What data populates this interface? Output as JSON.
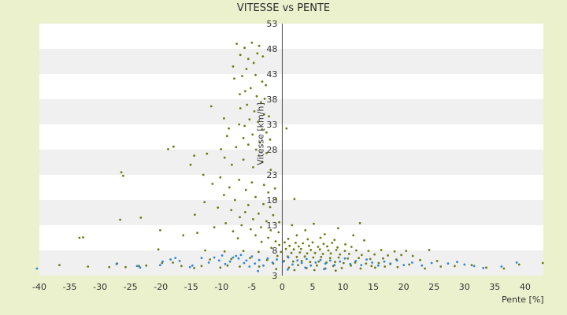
{
  "chart_data": {
    "type": "scatter",
    "title": "VITESSE vs PENTE",
    "xlabel": "Pente [%]",
    "ylabel": "Vitesse [km/h]",
    "xlim": [
      -40,
      43
    ],
    "ylim": [
      3,
      53
    ],
    "x_ticks": [
      "-40",
      "-35",
      "-30",
      "-25",
      "-20",
      "-15",
      "-10",
      "-5",
      "0",
      "5",
      "10",
      "15",
      "20",
      "25",
      "30",
      "35",
      "40"
    ],
    "y_ticks": [
      "3",
      "8",
      "13",
      "18",
      "23",
      "28",
      "33",
      "38",
      "43",
      "48",
      "53"
    ],
    "grid": "horizontal bands",
    "series": [
      {
        "color": "#6b7d12",
        "points": [
          [
            -5.0,
            49.2
          ],
          [
            -7.5,
            49.0
          ],
          [
            -6.2,
            48.2
          ],
          [
            -3.8,
            48.6
          ],
          [
            -4.1,
            47.1
          ],
          [
            -6.9,
            46.8
          ],
          [
            -5.6,
            46.0
          ],
          [
            -4.7,
            45.2
          ],
          [
            -3.2,
            46.5
          ],
          [
            -8.1,
            44.5
          ],
          [
            -5.9,
            44.0
          ],
          [
            -6.6,
            42.6
          ],
          [
            -7.9,
            42.1
          ],
          [
            -4.4,
            42.8
          ],
          [
            -3.3,
            41.5
          ],
          [
            -2.7,
            40.8
          ],
          [
            -5.2,
            40.2
          ],
          [
            -6.1,
            39.6
          ],
          [
            -7.0,
            39.0
          ],
          [
            -4.2,
            38.6
          ],
          [
            -2.9,
            38.1
          ],
          [
            -3.5,
            37.4
          ],
          [
            -5.8,
            36.9
          ],
          [
            -6.9,
            36.2
          ],
          [
            -11.7,
            36.6
          ],
          [
            -4.6,
            35.6
          ],
          [
            -3.0,
            35.0
          ],
          [
            -2.2,
            34.6
          ],
          [
            -9.6,
            34.2
          ],
          [
            -5.4,
            34.0
          ],
          [
            -4.0,
            33.5
          ],
          [
            -7.1,
            33.0
          ],
          [
            -6.2,
            32.7
          ],
          [
            -8.8,
            32.2
          ],
          [
            -3.3,
            32.0
          ],
          [
            -2.6,
            31.4
          ],
          [
            -4.9,
            31.0
          ],
          [
            -9.1,
            30.7
          ],
          [
            -6.4,
            30.3
          ],
          [
            0.7,
            32.2
          ],
          [
            -2.0,
            30.0
          ],
          [
            -3.7,
            29.4
          ],
          [
            -5.6,
            29.0
          ],
          [
            -7.6,
            28.5
          ],
          [
            -10.1,
            28.1
          ],
          [
            -17.9,
            28.6
          ],
          [
            -18.8,
            28.1
          ],
          [
            -4.3,
            28.0
          ],
          [
            -2.6,
            27.3
          ],
          [
            -12.4,
            27.2
          ],
          [
            -14.5,
            26.8
          ],
          [
            -9.5,
            26.4
          ],
          [
            -6.4,
            26.0
          ],
          [
            -3.3,
            25.6
          ],
          [
            -15.1,
            25.0
          ],
          [
            -8.3,
            25.0
          ],
          [
            -4.8,
            24.5
          ],
          [
            -1.9,
            24.0
          ],
          [
            -26.5,
            23.5
          ],
          [
            -26.2,
            22.8
          ],
          [
            -13.0,
            23.0
          ],
          [
            -10.2,
            22.5
          ],
          [
            -7.1,
            22.0
          ],
          [
            -5.0,
            21.5
          ],
          [
            -3.0,
            21.0
          ],
          [
            -1.2,
            20.3
          ],
          [
            -11.5,
            21.2
          ],
          [
            -8.7,
            20.5
          ],
          [
            -6.0,
            20.0
          ],
          [
            -2.3,
            19.5
          ],
          [
            -9.6,
            19.0
          ],
          [
            -4.4,
            18.6
          ],
          [
            -1.0,
            18.2
          ],
          [
            2.0,
            18.2
          ],
          [
            -7.8,
            18.0
          ],
          [
            -12.8,
            17.6
          ],
          [
            -3.1,
            17.2
          ],
          [
            -5.6,
            17.0
          ],
          [
            -10.6,
            16.5
          ],
          [
            -2.0,
            16.6
          ],
          [
            -8.4,
            16.0
          ],
          [
            -6.1,
            15.6
          ],
          [
            -3.9,
            15.3
          ],
          [
            -1.5,
            15.0
          ],
          [
            -14.4,
            15.1
          ],
          [
            -23.3,
            14.5
          ],
          [
            -26.7,
            14.1
          ],
          [
            -7.0,
            14.6
          ],
          [
            -4.8,
            14.2
          ],
          [
            -2.6,
            13.8
          ],
          [
            -9.3,
            13.4
          ],
          [
            -0.5,
            13.6
          ],
          [
            -6.7,
            13.0
          ],
          [
            1.6,
            13.0
          ],
          [
            5.2,
            13.3
          ],
          [
            12.8,
            13.4
          ],
          [
            -3.5,
            12.6
          ],
          [
            -11.2,
            12.6
          ],
          [
            -20.1,
            12.0
          ],
          [
            -5.2,
            12.2
          ],
          [
            -1.9,
            12.0
          ],
          [
            3.8,
            12.0
          ],
          [
            9.2,
            12.4
          ],
          [
            -8.1,
            11.8
          ],
          [
            -0.6,
            11.6
          ],
          [
            -14.0,
            11.5
          ],
          [
            -16.3,
            11.0
          ],
          [
            -32.8,
            10.6
          ],
          [
            -33.4,
            10.5
          ],
          [
            -4.4,
            11.0
          ],
          [
            2.4,
            11.0
          ],
          [
            7.0,
            11.2
          ],
          [
            11.7,
            11.0
          ],
          [
            -2.3,
            10.5
          ],
          [
            -7.3,
            10.4
          ],
          [
            1.0,
            10.3
          ],
          [
            4.2,
            10.2
          ],
          [
            6.3,
            10.5
          ],
          [
            8.6,
            10.1
          ],
          [
            13.5,
            10.0
          ],
          [
            -1.1,
            9.8
          ],
          [
            -3.4,
            9.7
          ],
          [
            0.4,
            9.6
          ],
          [
            2.2,
            9.5
          ],
          [
            3.4,
            9.4
          ],
          [
            5.0,
            9.6
          ],
          [
            6.8,
            9.3
          ],
          [
            8.2,
            9.5
          ],
          [
            10.4,
            9.2
          ],
          [
            -0.5,
            9.1
          ],
          [
            1.2,
            8.9
          ],
          [
            2.7,
            8.8
          ],
          [
            4.4,
            8.9
          ],
          [
            5.9,
            8.7
          ],
          [
            7.4,
            8.8
          ],
          [
            9.1,
            8.6
          ],
          [
            11.4,
            8.7
          ],
          [
            -1.8,
            8.5
          ],
          [
            0.6,
            8.3
          ],
          [
            1.9,
            8.2
          ],
          [
            3.1,
            8.3
          ],
          [
            4.7,
            8.1
          ],
          [
            6.2,
            8.2
          ],
          [
            7.6,
            8.0
          ],
          [
            8.9,
            8.1
          ],
          [
            10.3,
            7.9
          ],
          [
            12.2,
            8.0
          ],
          [
            14.2,
            7.9
          ],
          [
            16.3,
            8.1
          ],
          [
            18.5,
            7.8
          ],
          [
            20.4,
            7.9
          ],
          [
            -20.4,
            8.2
          ],
          [
            -12.7,
            8.0
          ],
          [
            -9.5,
            7.8
          ],
          [
            -6.4,
            7.9
          ],
          [
            -3.9,
            7.7
          ],
          [
            -0.2,
            7.7
          ],
          [
            1.5,
            7.5
          ],
          [
            2.9,
            7.6
          ],
          [
            4.1,
            7.4
          ],
          [
            5.4,
            7.5
          ],
          [
            6.7,
            7.3
          ],
          [
            8.0,
            7.4
          ],
          [
            9.5,
            7.2
          ],
          [
            11.0,
            7.3
          ],
          [
            13.1,
            7.1
          ],
          [
            15.2,
            7.2
          ],
          [
            17.4,
            7.0
          ],
          [
            19.6,
            7.1
          ],
          [
            21.5,
            6.9
          ],
          [
            24.2,
            8.1
          ],
          [
            -0.8,
            6.9
          ],
          [
            0.9,
            6.8
          ],
          [
            2.4,
            6.7
          ],
          [
            3.7,
            6.8
          ],
          [
            5.1,
            6.6
          ],
          [
            6.4,
            6.7
          ],
          [
            7.9,
            6.5
          ],
          [
            9.3,
            6.6
          ],
          [
            10.8,
            6.4
          ],
          [
            12.6,
            6.5
          ],
          [
            14.5,
            6.3
          ],
          [
            16.6,
            6.4
          ],
          [
            18.8,
            6.2
          ],
          [
            22.7,
            6.1
          ],
          [
            25.5,
            5.9
          ],
          [
            -5.3,
            6.5
          ],
          [
            -8.4,
            6.3
          ],
          [
            -11.9,
            6.2
          ],
          [
            -2.5,
            6.1
          ],
          [
            0.3,
            5.9
          ],
          [
            1.8,
            5.8
          ],
          [
            3.2,
            5.9
          ],
          [
            4.6,
            5.7
          ],
          [
            6.0,
            5.8
          ],
          [
            7.3,
            5.6
          ],
          [
            8.7,
            5.7
          ],
          [
            10.1,
            5.5
          ],
          [
            12.0,
            5.6
          ],
          [
            13.8,
            5.4
          ],
          [
            15.9,
            5.5
          ],
          [
            17.8,
            5.3
          ],
          [
            20.9,
            5.2
          ],
          [
            -1.5,
            5.4
          ],
          [
            2.6,
            5.1
          ],
          [
            5.7,
            5.0
          ],
          [
            8.4,
            4.9
          ],
          [
            11.3,
            5.0
          ],
          [
            14.7,
            4.9
          ],
          [
            16.9,
            4.8
          ],
          [
            -3.8,
            4.8
          ],
          [
            -7.0,
            4.8
          ],
          [
            -10.2,
            4.6
          ],
          [
            -13.3,
            4.9
          ],
          [
            1.1,
            4.6
          ],
          [
            4.0,
            4.5
          ],
          [
            7.1,
            4.4
          ],
          [
            9.8,
            4.5
          ],
          [
            12.9,
            4.4
          ],
          [
            15.3,
            4.6
          ],
          [
            19.0,
            4.7
          ],
          [
            23.5,
            4.4
          ],
          [
            26.1,
            4.8
          ],
          [
            28.4,
            4.9
          ],
          [
            31.2,
            5.1
          ],
          [
            33.6,
            4.6
          ],
          [
            36.5,
            4.4
          ],
          [
            -1.0,
            4.3
          ],
          [
            2.0,
            4.1
          ],
          [
            5.3,
            4.1
          ],
          [
            8.8,
            4.0
          ],
          [
            -27.2,
            5.4
          ],
          [
            -23.6,
            4.9
          ],
          [
            -18.0,
            5.6
          ],
          [
            -14.5,
            4.5
          ],
          [
            -9.0,
            5.0
          ],
          [
            -36.7,
            5.1
          ],
          [
            -32.0,
            4.8
          ],
          [
            -28.5,
            4.7
          ],
          [
            -25.8,
            4.7
          ],
          [
            -22.4,
            5.0
          ],
          [
            -19.8,
            5.5
          ],
          [
            -16.6,
            4.9
          ],
          [
            42.9,
            5.5
          ],
          [
            39.0,
            5.2
          ]
        ]
      },
      {
        "color": "#2f86d8",
        "points": [
          [
            -40.4,
            4.4
          ],
          [
            -27.3,
            5.3
          ],
          [
            -23.9,
            4.9
          ],
          [
            -23.4,
            4.6
          ],
          [
            -20.1,
            5.1
          ],
          [
            -19.7,
            5.8
          ],
          [
            -18.4,
            6.2
          ],
          [
            -17.6,
            6.5
          ],
          [
            -16.9,
            5.9
          ],
          [
            -15.2,
            4.7
          ],
          [
            -14.8,
            5.0
          ],
          [
            -13.3,
            6.5
          ],
          [
            -12.1,
            5.6
          ],
          [
            -11.2,
            6.6
          ],
          [
            -10.4,
            6.0
          ],
          [
            -9.9,
            7.0
          ],
          [
            -9.4,
            5.3
          ],
          [
            -8.6,
            5.8
          ],
          [
            -8.1,
            6.6
          ],
          [
            -7.6,
            6.9
          ],
          [
            -7.2,
            6.4
          ],
          [
            -6.8,
            7.1
          ],
          [
            -6.3,
            5.5
          ],
          [
            -5.9,
            6.0
          ],
          [
            -5.4,
            4.8
          ],
          [
            -5.0,
            6.8
          ],
          [
            -4.5,
            5.4
          ],
          [
            -3.8,
            6.1
          ],
          [
            -3.1,
            5.0
          ],
          [
            -2.4,
            6.4
          ],
          [
            -1.6,
            5.6
          ],
          [
            -0.9,
            6.2
          ],
          [
            0.2,
            5.8
          ],
          [
            1.0,
            6.6
          ],
          [
            1.7,
            5.2
          ],
          [
            2.5,
            6.0
          ],
          [
            3.2,
            5.5
          ],
          [
            4.0,
            6.3
          ],
          [
            4.7,
            5.0
          ],
          [
            5.5,
            5.6
          ],
          [
            6.3,
            6.1
          ],
          [
            7.1,
            5.4
          ],
          [
            7.9,
            6.0
          ],
          [
            8.6,
            5.1
          ],
          [
            9.5,
            5.8
          ],
          [
            10.3,
            6.4
          ],
          [
            11.2,
            5.3
          ],
          [
            12.1,
            5.9
          ],
          [
            13.0,
            5.1
          ],
          [
            13.9,
            6.2
          ],
          [
            14.8,
            5.6
          ],
          [
            15.8,
            5.0
          ],
          [
            16.8,
            5.8
          ],
          [
            17.8,
            5.4
          ],
          [
            18.9,
            6.0
          ],
          [
            20.0,
            5.1
          ],
          [
            21.4,
            5.6
          ],
          [
            23.0,
            5.0
          ],
          [
            24.6,
            5.5
          ],
          [
            27.3,
            5.4
          ],
          [
            28.8,
            5.7
          ],
          [
            30.0,
            5.2
          ],
          [
            31.6,
            4.9
          ],
          [
            33.1,
            4.5
          ],
          [
            36.1,
            4.8
          ],
          [
            38.6,
            5.6
          ],
          [
            -4.0,
            3.9
          ],
          [
            0.9,
            4.2
          ],
          [
            3.8,
            4.6
          ],
          [
            6.9,
            4.3
          ]
        ]
      }
    ]
  }
}
